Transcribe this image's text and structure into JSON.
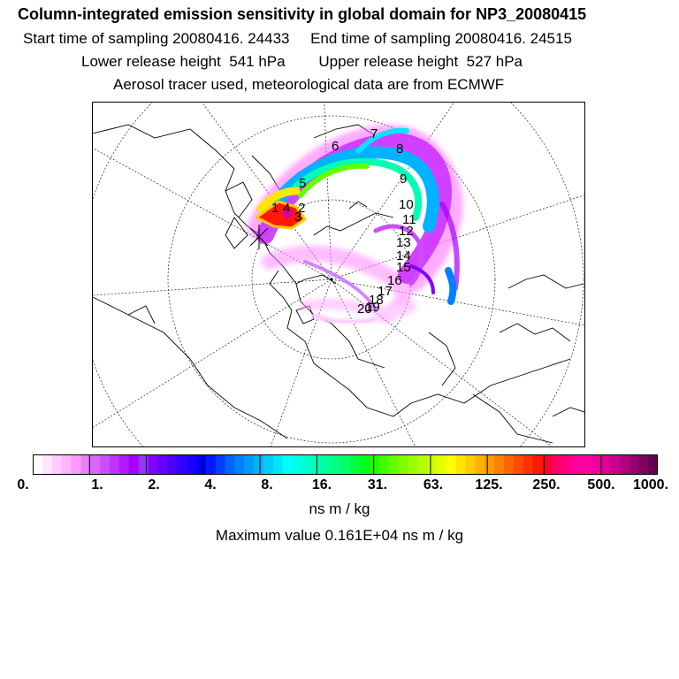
{
  "header": {
    "title": "Column-integrated emission sensitivity in global domain for NP3_20080415",
    "sampling": "Start time of sampling 20080416. 24433     End time of sampling 20080416. 24515",
    "release": "Lower release height  541 hPa        Upper release height  527 hPa",
    "tracer": "Aerosol tracer used, meteorological data are from ECMWF"
  },
  "map": {
    "projection": "polar stereographic (north pole)",
    "trajectory_labels": [
      "1",
      "2",
      "3",
      "4",
      "5",
      "6",
      "7",
      "8",
      "9",
      "10",
      "11",
      "12",
      "13",
      "14",
      "15",
      "16",
      "17",
      "18",
      "19",
      "20"
    ]
  },
  "colorbar": {
    "tick_labels": [
      "0.",
      "1.",
      "2.",
      "4.",
      "8.",
      "16.",
      "31.",
      "63.",
      "125.",
      "250.",
      "500.",
      "1000."
    ],
    "colors": [
      "#ffffff",
      "#ffe6ff",
      "#ffccff",
      "#ffb3ff",
      "#ff99ff",
      "#e680ff",
      "#d966ff",
      "#cc4dff",
      "#bf33ff",
      "#b31aff",
      "#a600ff",
      "#9933ff",
      "#8000ff",
      "#6600ff",
      "#4d00ff",
      "#3300ff",
      "#1a00ff",
      "#0000ff",
      "#001aff",
      "#0040ff",
      "#0066ff",
      "#0080ff",
      "#0099ff",
      "#00b3ff",
      "#00ccff",
      "#00e6ff",
      "#00ffff",
      "#00ffe6",
      "#00ffcc",
      "#00ffb3",
      "#00ff99",
      "#00ff80",
      "#00ff66",
      "#00ff40",
      "#00ff1a",
      "#1aff00",
      "#40ff00",
      "#66ff00",
      "#80ff00",
      "#99ff00",
      "#b3ff00",
      "#ccff00",
      "#e6ff00",
      "#ffff00",
      "#ffe600",
      "#ffcc00",
      "#ffb300",
      "#ff9900",
      "#ff8000",
      "#ff6600",
      "#ff4d00",
      "#ff3300",
      "#ff1a00",
      "#ff0033",
      "#ff0066",
      "#ff0080",
      "#ff0099",
      "#ff00a6",
      "#f000a0",
      "#e00098",
      "#cc0090",
      "#b30080",
      "#990070",
      "#800060",
      "#66004d"
    ]
  },
  "units": "ns m / kg",
  "maximum": "Maximum value  0.161E+04 ns m / kg"
}
